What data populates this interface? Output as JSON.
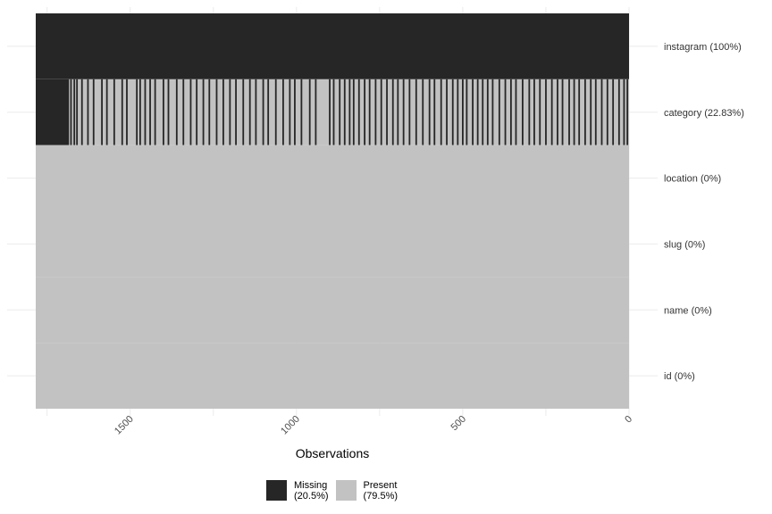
{
  "chart_data": {
    "type": "heatmap",
    "xlabel": "Observations",
    "n_obs": 1784,
    "x_ticks": [
      0,
      500,
      1000,
      1500
    ],
    "variables": [
      {
        "label": "instagram (100%)",
        "missing_pct": 100
      },
      {
        "label": "category (22.83%)",
        "missing_pct": 22.83
      },
      {
        "label": "location (0%)",
        "missing_pct": 0
      },
      {
        "label": "slug (0%)",
        "missing_pct": 0
      },
      {
        "label": "name (0%)",
        "missing_pct": 0
      },
      {
        "label": "id (0%)",
        "missing_pct": 0
      }
    ],
    "category_missing_obs": {
      "block_start": 1684,
      "scattered": [
        1678,
        1668,
        1660,
        1645,
        1627,
        1610,
        1585,
        1570,
        1548,
        1524,
        1510,
        1480,
        1470,
        1455,
        1440,
        1425,
        1400,
        1385,
        1360,
        1340,
        1318,
        1300,
        1280,
        1262,
        1240,
        1220,
        1200,
        1182,
        1160,
        1140,
        1122,
        1100,
        1085,
        1062,
        1040,
        1020,
        1005,
        985,
        960,
        942,
        900,
        888,
        870,
        855,
        840,
        828,
        812,
        795,
        780,
        762,
        745,
        728,
        710,
        695,
        678,
        660,
        640,
        620,
        600,
        585,
        565,
        548,
        530,
        515,
        500,
        488,
        470,
        455,
        440,
        425,
        410,
        390,
        372,
        355,
        340,
        320,
        300,
        285,
        268,
        250,
        232,
        215,
        200,
        180,
        165,
        150,
        132,
        115,
        100,
        82,
        65,
        48,
        30,
        15,
        5
      ]
    },
    "legend": [
      {
        "label": "Missing",
        "pct": "(20.5%)",
        "color": "#262626"
      },
      {
        "label": "Present",
        "pct": "(79.5%)",
        "color": "#c2c2c2"
      }
    ],
    "grid": true,
    "legend_position": "bottom"
  }
}
